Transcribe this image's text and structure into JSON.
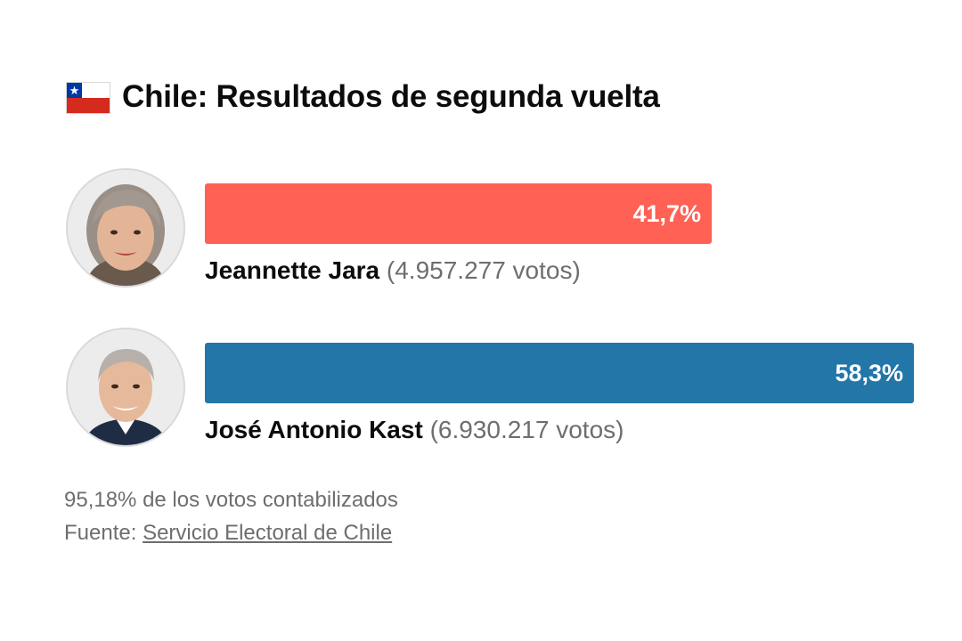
{
  "title": "Chile: Resultados de segunda vuelta",
  "flag_icon": "chile-flag-icon",
  "colors": {
    "jara": "#ff6155",
    "kast": "#2276a8",
    "flag_red": "#d52b1e",
    "flag_blue": "#0039a6"
  },
  "chart_data": {
    "type": "bar",
    "orientation": "horizontal",
    "categories": [
      "Jeannette Jara",
      "José Antonio Kast"
    ],
    "values": [
      41.7,
      58.3
    ],
    "value_labels": [
      "41,7%",
      "58,3%"
    ],
    "votes_labels": [
      "(4.957.277 votos)",
      "(6.930.217 votos)"
    ],
    "votes": [
      4957277,
      6930217
    ],
    "colors": [
      "#ff6155",
      "#2276a8"
    ],
    "xlim": [
      0,
      58.3
    ],
    "title": "Chile: Resultados de segunda vuelta"
  },
  "footer": {
    "counted": "95,18% de los votos contabilizados",
    "source_label": "Fuente:",
    "source_link": "Servicio Electoral de Chile"
  }
}
